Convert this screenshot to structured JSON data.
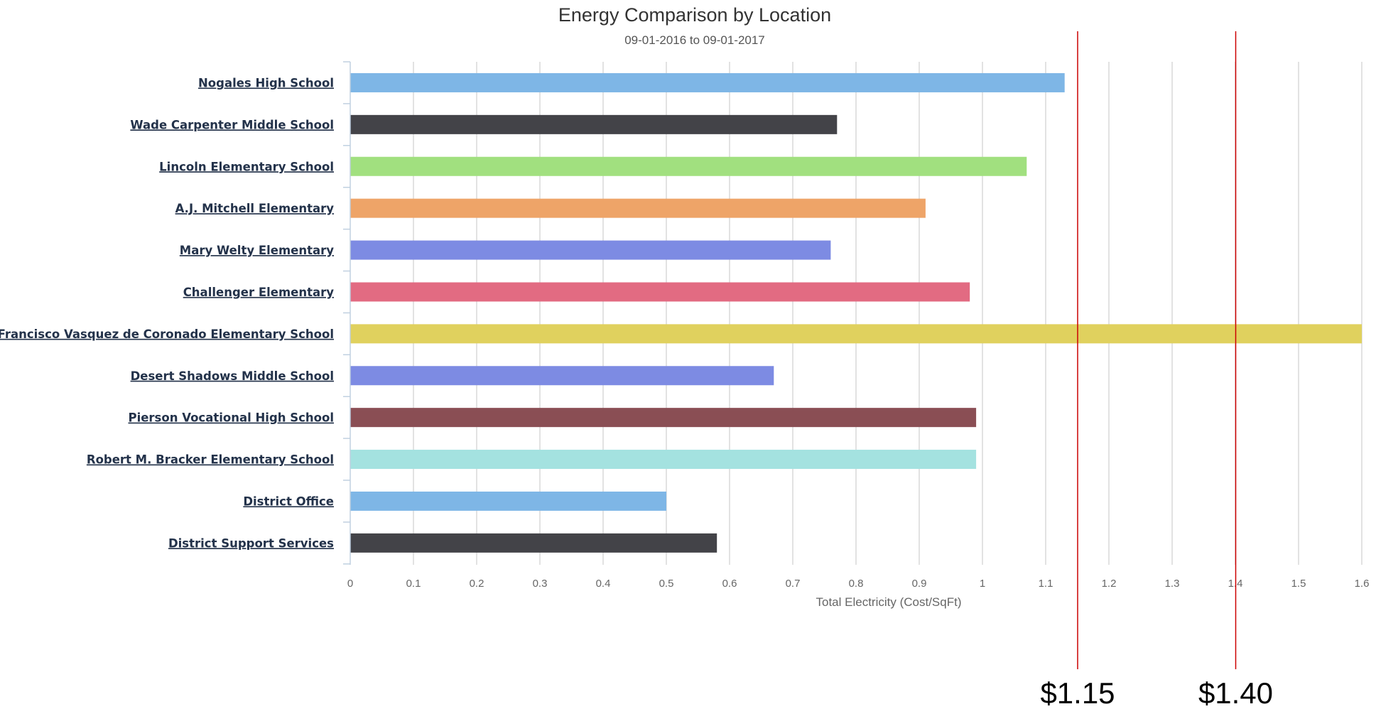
{
  "chart_data": {
    "type": "bar",
    "orientation": "horizontal",
    "title": "Energy Comparison by Location",
    "subtitle": "09-01-2016 to 09-01-2017",
    "xlabel": "Total Electricity (Cost/SqFt)",
    "ylabel": "",
    "xlim": [
      0,
      1.6
    ],
    "x_ticks": [
      "0",
      "0.1",
      "0.2",
      "0.3",
      "0.4",
      "0.5",
      "0.6",
      "0.7",
      "0.8",
      "0.9",
      "1",
      "1.1",
      "1.2",
      "1.3",
      "1.4",
      "1.5",
      "1.6"
    ],
    "grid": true,
    "legend": "none",
    "categories": [
      "Nogales High School",
      "Wade Carpenter Middle School",
      "Lincoln Elementary School",
      "A.J. Mitchell Elementary",
      "Mary Welty Elementary",
      "Challenger Elementary",
      "Francisco Vasquez de Coronado Elementary School",
      "Desert Shadows Middle School",
      "Pierson Vocational High School",
      "Robert M. Bracker Elementary School",
      "District Office",
      "District Support Services"
    ],
    "values": [
      1.13,
      0.77,
      1.07,
      0.91,
      0.76,
      0.98,
      1.6,
      0.67,
      0.99,
      0.99,
      0.5,
      0.58
    ],
    "colors": [
      "#7eb6e6",
      "#434348",
      "#a1e07f",
      "#eea468",
      "#7d8be3",
      "#e26b82",
      "#e0d15e",
      "#7d8be3",
      "#8a4e54",
      "#a4e2e0",
      "#7eb6e6",
      "#434348"
    ],
    "reference_lines": [
      {
        "value": 1.15,
        "label": "$1.15",
        "color": "#cc0000"
      },
      {
        "value": 1.4,
        "label": "$1.40",
        "color": "#cc0000"
      }
    ],
    "grid_color": "#d8d8d8",
    "axis_color": "#c0d0e0"
  }
}
